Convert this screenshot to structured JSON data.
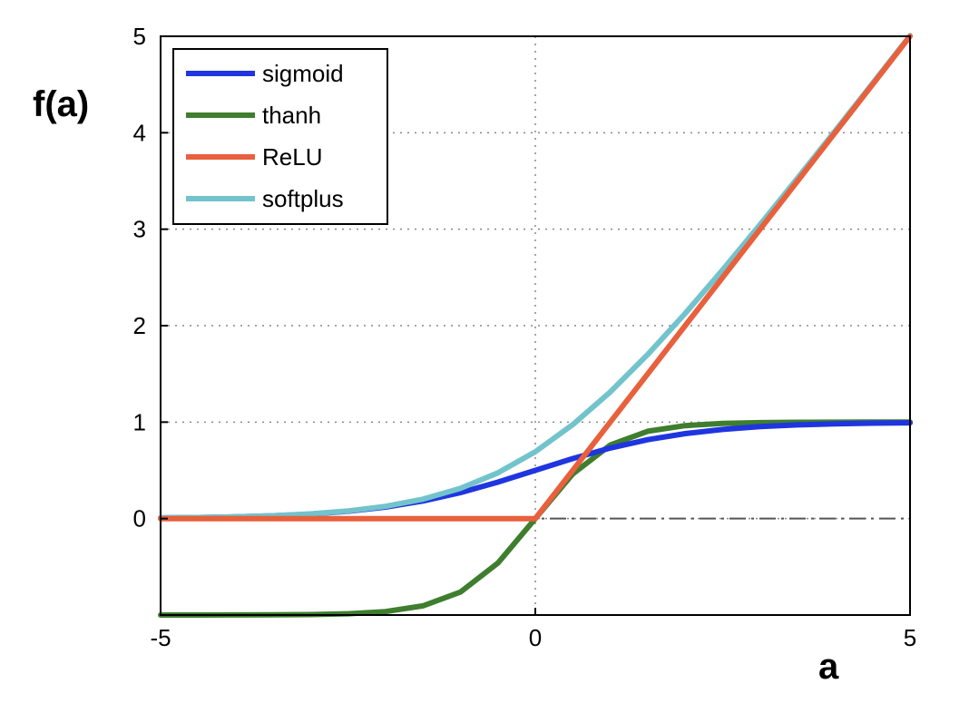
{
  "chart_data": {
    "type": "line",
    "title": "",
    "xlabel": "a",
    "ylabel": "f(a)",
    "xlim": [
      -5,
      5
    ],
    "ylim": [
      -1,
      5
    ],
    "x_ticks": [
      -5,
      0,
      5
    ],
    "y_ticks": [
      0,
      1,
      2,
      3,
      4,
      5
    ],
    "grid": true,
    "legend_position": "top-left",
    "reference_line": {
      "y": 0,
      "style": "dash-dot",
      "color": "#555555"
    },
    "x": [
      -5,
      -4.5,
      -4,
      -3.5,
      -3,
      -2.5,
      -2,
      -1.5,
      -1,
      -0.5,
      0,
      0.5,
      1,
      1.5,
      2,
      2.5,
      3,
      3.5,
      4,
      4.5,
      5
    ],
    "series": [
      {
        "name": "sigmoid",
        "color": "#1f35e0",
        "values": [
          0.007,
          0.011,
          0.018,
          0.029,
          0.047,
          0.076,
          0.119,
          0.182,
          0.269,
          0.378,
          0.5,
          0.622,
          0.731,
          0.818,
          0.881,
          0.924,
          0.953,
          0.971,
          0.982,
          0.989,
          0.993
        ]
      },
      {
        "name": "thanh",
        "color": "#3e7e2e",
        "values": [
          -1.0,
          -1.0,
          -0.999,
          -0.998,
          -0.995,
          -0.987,
          -0.964,
          -0.905,
          -0.762,
          -0.462,
          0.0,
          0.462,
          0.762,
          0.905,
          0.964,
          0.987,
          0.995,
          0.998,
          0.999,
          1.0,
          1.0
        ]
      },
      {
        "name": "ReLU",
        "color": "#e8603c",
        "values": [
          0,
          0,
          0,
          0,
          0,
          0,
          0,
          0,
          0,
          0,
          0,
          0.5,
          1,
          1.5,
          2,
          2.5,
          3,
          3.5,
          4,
          4.5,
          5
        ]
      },
      {
        "name": "softplus",
        "color": "#72c3cc",
        "values": [
          0.007,
          0.011,
          0.018,
          0.03,
          0.049,
          0.079,
          0.127,
          0.201,
          0.313,
          0.474,
          0.693,
          0.974,
          1.313,
          1.701,
          2.127,
          2.579,
          3.049,
          3.53,
          4.018,
          4.511,
          5.007
        ]
      }
    ]
  }
}
